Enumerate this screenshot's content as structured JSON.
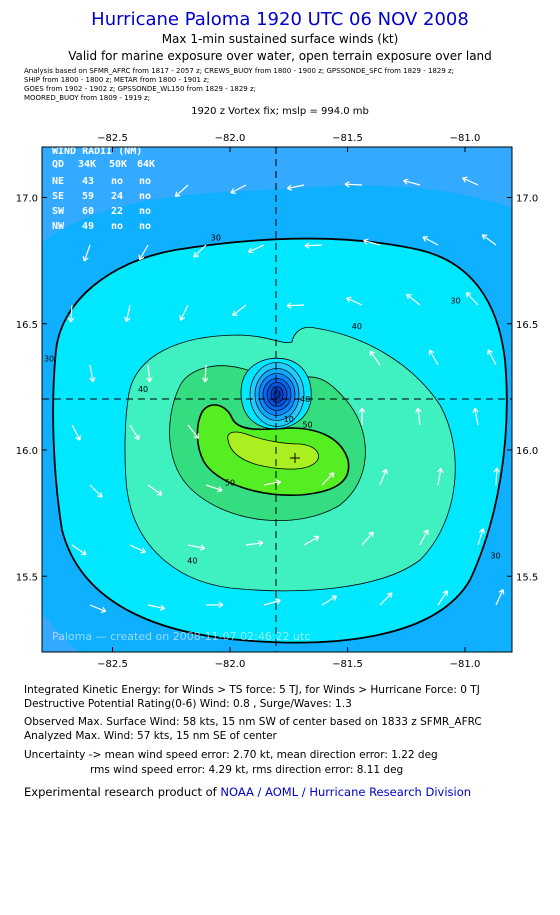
{
  "header": {
    "title": "Hurricane Paloma 1920 UTC 06 NOV 2008",
    "subtitle1": "Max 1-min sustained surface winds (kt)",
    "subtitle2": "Valid for marine exposure over water, open terrain exposure over land",
    "sources": [
      "Analysis based on  SFMR_AFRC from 1817 - 2057 z;   CREWS_BUOY from 1800 - 1900 z;   GPSSONDE_SFC from 1829 - 1829 z;",
      "SHIP from 1800 - 1800 z;   METAR from 1800 - 1901 z;",
      "GOES from 1902 - 1902 z;   GPSSONDE_WL150 from 1829 - 1829 z;",
      "MOORED_BUOY from 1809 - 1919 z;"
    ],
    "vortex_fix": "1920 z Vortex fix; mslp = 994.0 mb"
  },
  "chart_data": {
    "type": "contour",
    "xlim": [
      -82.8,
      -80.8
    ],
    "ylim": [
      15.2,
      17.2
    ],
    "x_ticks": [
      -82.5,
      -82.0,
      -81.5,
      -81.0
    ],
    "x_tick_labels": [
      "−82.5",
      "−82.0",
      "−81.5",
      "−81.0"
    ],
    "y_ticks": [
      15.5,
      16.0,
      16.5,
      17.0
    ],
    "y_tick_labels": [
      "15.5",
      "16.0",
      "16.5",
      "17.0"
    ],
    "center": {
      "lon": -81.8,
      "lat": 16.22
    },
    "max_wind_marker": {
      "lon": -81.72,
      "lat": 15.99
    },
    "contour_labels": [
      {
        "text": "30",
        "lon": -82.06,
        "lat": 16.83
      },
      {
        "text": "30",
        "lon": -81.04,
        "lat": 16.58
      },
      {
        "text": "30",
        "lon": -82.77,
        "lat": 16.35
      },
      {
        "text": "30",
        "lon": -80.87,
        "lat": 15.57
      },
      {
        "text": "40",
        "lon": -81.46,
        "lat": 16.48
      },
      {
        "text": "40",
        "lon": -82.37,
        "lat": 16.23
      },
      {
        "text": "40",
        "lon": -81.68,
        "lat": 16.19
      },
      {
        "text": "40",
        "lon": -82.16,
        "lat": 15.55
      },
      {
        "text": "50",
        "lon": -81.67,
        "lat": 16.09
      },
      {
        "text": "50",
        "lon": -82.0,
        "lat": 15.86
      },
      {
        "text": "10",
        "lon": -81.75,
        "lat": 16.11
      }
    ],
    "colors": {
      "lt30": "#0fb0ff",
      "b30_40": "#00e8ff",
      "b40_50": "#3ff0c0",
      "b50_60": "#33dd80",
      "b60_70": "#55ee22",
      "b70_80": "#aaf020",
      "core": "#0044ee",
      "corner": "#33aaff"
    },
    "wind_radii": {
      "title": "WIND RADII (NM)",
      "header": [
        "QD",
        "34K",
        "50K",
        "64K"
      ],
      "rows": [
        [
          "NE",
          "43",
          "no",
          "no"
        ],
        [
          "SE",
          "59",
          "24",
          "no"
        ],
        [
          "SW",
          "60",
          "22",
          "no"
        ],
        [
          "NW",
          "49",
          "no",
          "no"
        ]
      ]
    },
    "watermark": "Paloma — created on 2008-11-07 02:46:22 utc"
  },
  "info": {
    "ike": "Integrated Kinetic Energy:  for Winds > TS force: 5 TJ,  for Winds > Hurricane Force: 0 TJ",
    "dpr": "Destructive Potential Rating(0-6)   Wind: 0.8 , Surge/Waves: 1.3",
    "observed": "Observed Max. Surface Wind: 58 kts, 15 nm SW of center based on 1833 z SFMR_AFRC",
    "analyzed": "Analyzed Max. Wind: 57 kts, 15 nm SE of center",
    "uncert1": "Uncertainty -> mean wind speed error: 2.70 kt,   mean direction error: 1.22 deg",
    "uncert2": "rms wind speed error: 4.29 kt,   rms direction error: 8.11 deg"
  },
  "footer": {
    "text": "Experimental research product of ",
    "link": "NOAA / AOML / Hurricane Research Division"
  }
}
